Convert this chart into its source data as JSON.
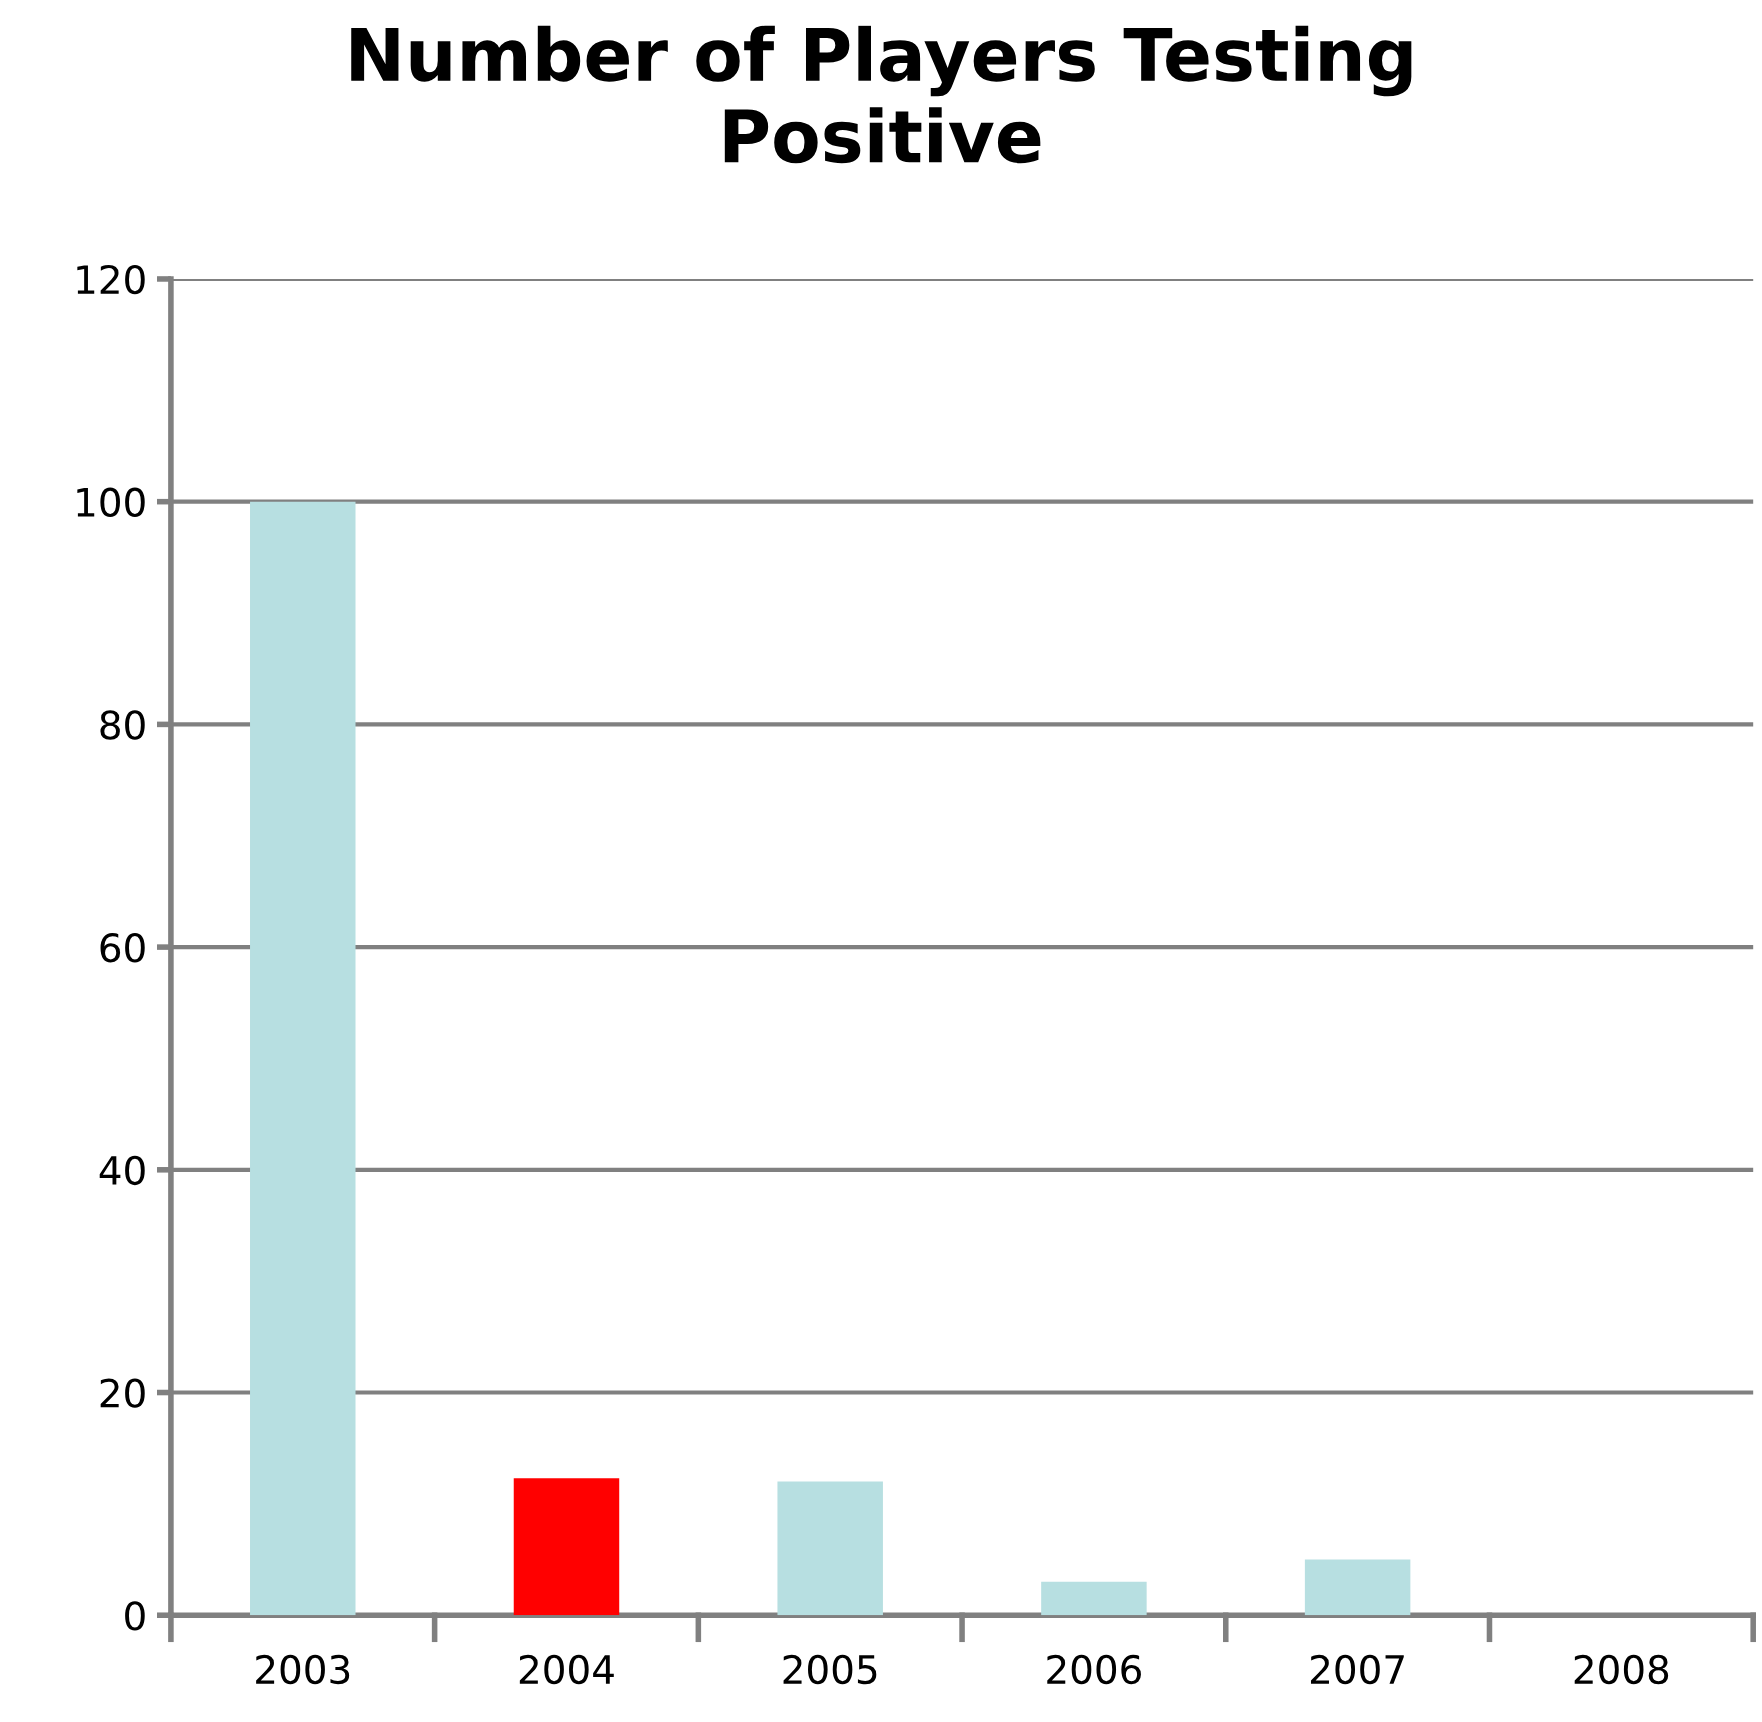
{
  "chart_data": {
    "type": "bar",
    "title": "Number of Players Testing\nPositive",
    "categories": [
      "2003",
      "2004",
      "2005",
      "2006",
      "2007",
      "2008"
    ],
    "values": [
      100,
      12.3,
      12,
      3,
      5,
      0
    ],
    "colors": [
      "#b7dfe1",
      "#ff0000",
      "#b7dfe1",
      "#b7dfe1",
      "#b7dfe1",
      "#b7dfe1"
    ],
    "ylim": [
      0,
      120
    ],
    "yticks": [
      0,
      20,
      40,
      60,
      80,
      100,
      120
    ],
    "grid": "y"
  }
}
